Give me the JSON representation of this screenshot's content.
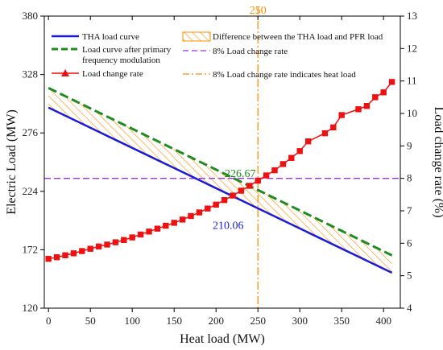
{
  "chart_data": {
    "type": "line",
    "xlabel": "Heat load (MW)",
    "ylabel_left": "Electric Load (MW)",
    "ylabel_right": "Load change rate (%)",
    "xlim": [
      -5,
      420
    ],
    "ylim_left": [
      120,
      380
    ],
    "ylim_right": [
      4,
      13
    ],
    "x_ticks": [
      0,
      50,
      100,
      150,
      200,
      250,
      300,
      350,
      400
    ],
    "y_left_ticks": [
      120,
      172,
      224,
      276,
      328,
      380
    ],
    "y_right_ticks": [
      4,
      5,
      6,
      7,
      8,
      9,
      10,
      11,
      12,
      13
    ],
    "grid": false,
    "legend_position": "top",
    "legend": {
      "tha": "THA load curve",
      "pfr": "Load curve after primary",
      "pfr_line2": "frequency modulation",
      "rate": "Load change rate",
      "diff": "Difference between the THA load and PFR load",
      "rate8": "8% Load change rate",
      "heat": "8% Load change rate indicates heat load"
    },
    "colors": {
      "tha": "#1c1cd6",
      "pfr": "#1e8c1e",
      "rate": "#ee1111",
      "rate8": "#9b30ff",
      "heat": "#ff8c00",
      "hatch": "#ff8c00"
    },
    "series": [
      {
        "name": "THA load curve",
        "axis": "left",
        "x": [
          0,
          410
        ],
        "values": [
          298.5,
          151.5
        ]
      },
      {
        "name": "Load curve after primary frequency modulation",
        "axis": "left",
        "x": [
          0,
          410
        ],
        "values": [
          316,
          167
        ]
      },
      {
        "name": "Load change rate",
        "axis": "right",
        "x": [
          0,
          10,
          20,
          30,
          40,
          50,
          60,
          70,
          80,
          90,
          100,
          110,
          120,
          130,
          140,
          150,
          160,
          170,
          180,
          190,
          200,
          210,
          220,
          230,
          240,
          250,
          260,
          270,
          280,
          290,
          300,
          310,
          330,
          340,
          350,
          370,
          380,
          390,
          400,
          410
        ],
        "values": [
          5.52,
          5.57,
          5.63,
          5.69,
          5.76,
          5.83,
          5.9,
          5.96,
          6.03,
          6.1,
          6.18,
          6.27,
          6.36,
          6.45,
          6.54,
          6.63,
          6.73,
          6.84,
          6.95,
          7.07,
          7.19,
          7.33,
          7.47,
          7.62,
          7.77,
          7.93,
          8.09,
          8.25,
          8.44,
          8.63,
          8.84,
          9.14,
          9.39,
          9.57,
          9.95,
          10.13,
          10.23,
          10.5,
          10.65,
          10.97
        ]
      }
    ],
    "hline_rate_pct": 8,
    "vline_heat_load": 250,
    "vline_label": "250",
    "annotations": [
      {
        "text": "226.67",
        "x": 250,
        "y": 226.67
      },
      {
        "text": "210.06",
        "x": 250,
        "y": 210.06
      }
    ]
  }
}
